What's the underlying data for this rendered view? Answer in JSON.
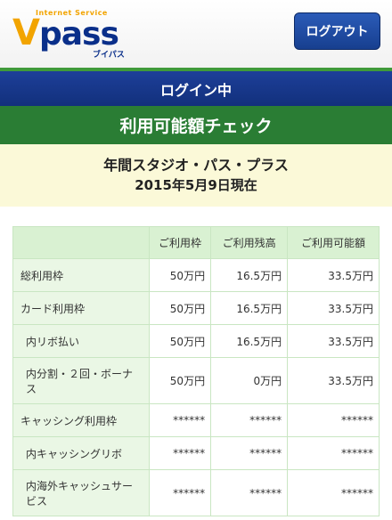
{
  "header": {
    "logo_tagline": "Internet Service",
    "logo_v": "V",
    "logo_rest": "pass",
    "logo_kana": "ブイパス",
    "logout_label": "ログアウト"
  },
  "status": {
    "login_text": "ログイン中"
  },
  "page": {
    "title": "利用可能額チェック"
  },
  "card": {
    "name": "年間スタジオ・パス・プラス",
    "as_of": "2015年5月9日現在"
  },
  "table": {
    "columns": [
      "ご利用枠",
      "ご利用残高",
      "ご利用可能額"
    ],
    "rows": [
      {
        "label": "総利用枠",
        "values": [
          "50万円",
          "16.5万円",
          "33.5万円"
        ]
      },
      {
        "label": "カード利用枠",
        "values": [
          "50万円",
          "16.5万円",
          "33.5万円"
        ]
      },
      {
        "label": "内リボ払い",
        "values": [
          "50万円",
          "16.5万円",
          "33.5万円"
        ]
      },
      {
        "label": "内分割・２回・ボーナス",
        "values": [
          "50万円",
          "0万円",
          "33.5万円"
        ]
      },
      {
        "label": "キャッシング利用枠",
        "values": [
          "******",
          "******",
          "******"
        ]
      },
      {
        "label": "内キャッシングリボ",
        "values": [
          "******",
          "******",
          "******"
        ]
      },
      {
        "label": "内海外キャッシュサービス",
        "values": [
          "******",
          "******",
          "******"
        ]
      }
    ]
  },
  "colors": {
    "brand_navy": "#0a2f8a",
    "brand_yellow": "#f2a400",
    "status_bar": "#1d3f99",
    "title_green": "#2a7d34",
    "card_bg": "#fbf9d8",
    "table_header_bg": "#d9f1d2",
    "table_label_bg": "#eaf7e5"
  }
}
